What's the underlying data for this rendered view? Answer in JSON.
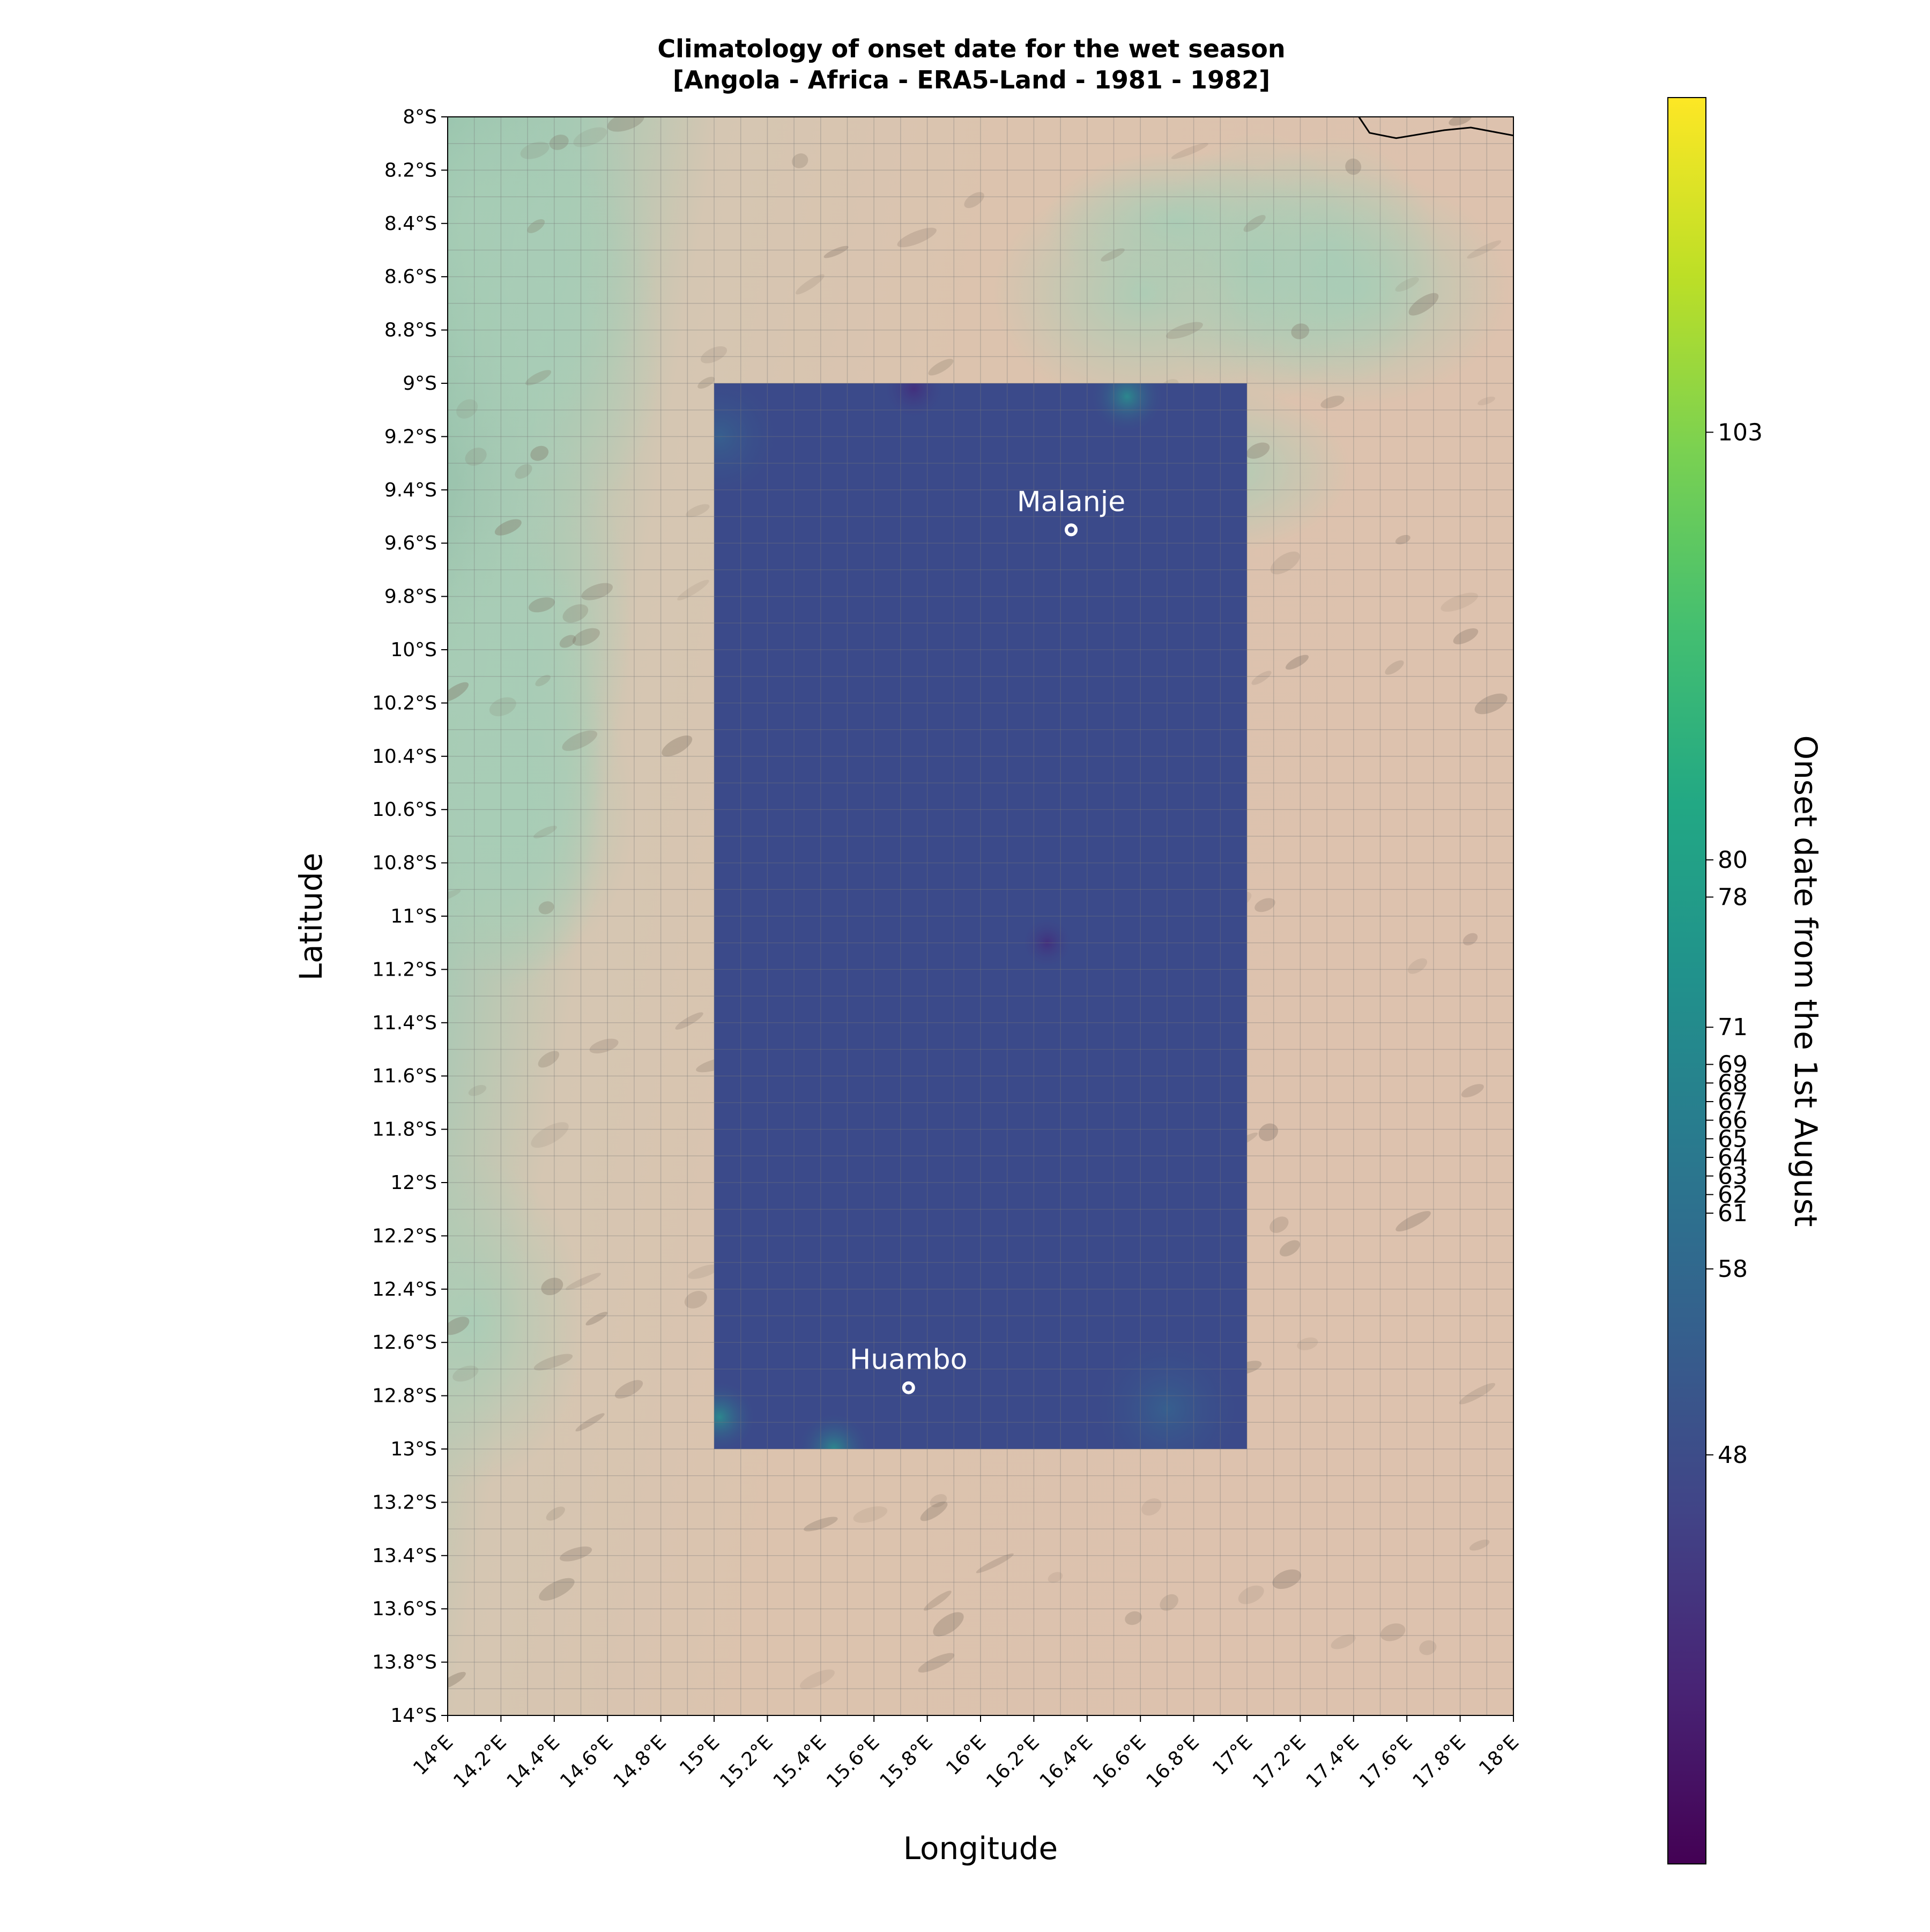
{
  "title_line1": "Climatology of onset date for the wet season",
  "title_line2": "[Angola - Africa - ERA5-Land - 1981 - 1982]",
  "xlabel": "Longitude",
  "ylabel": "Latitude",
  "colorbar_label": "Onset date from the 1st August",
  "colors": {
    "field": "#3b4a8a",
    "field_edge_teal": "#2a8e8e",
    "land_green": "#9cc4ad",
    "land_tan": "#d9c0ac",
    "border_line": "#000000",
    "city_marker": "#ffffff"
  },
  "map": {
    "lon_range": [
      14,
      18
    ],
    "lat_range": [
      -14,
      -8
    ],
    "lon_ticks": [
      "14°E",
      "14.2°E",
      "14.4°E",
      "14.6°E",
      "14.8°E",
      "15°E",
      "15.2°E",
      "15.4°E",
      "15.6°E",
      "15.8°E",
      "16°E",
      "16.2°E",
      "16.4°E",
      "16.6°E",
      "16.8°E",
      "17°E",
      "17.2°E",
      "17.4°E",
      "17.6°E",
      "17.8°E",
      "18°E"
    ],
    "lat_ticks": [
      "8°S",
      "8.2°S",
      "8.4°S",
      "8.6°S",
      "8.8°S",
      "9°S",
      "9.2°S",
      "9.4°S",
      "9.6°S",
      "9.8°S",
      "10°S",
      "10.2°S",
      "10.4°S",
      "10.6°S",
      "10.8°S",
      "11°S",
      "11.2°S",
      "11.4°S",
      "11.6°S",
      "11.8°S",
      "12°S",
      "12.2°S",
      "12.4°S",
      "12.6°S",
      "12.8°S",
      "13°S",
      "13.2°S",
      "13.4°S",
      "13.6°S",
      "13.8°S",
      "14°S"
    ],
    "data_region": {
      "lon_min": 15,
      "lon_max": 17,
      "lat_min": -13,
      "lat_max": -9
    },
    "cities": [
      {
        "name": "Malanje",
        "lon": 16.34,
        "lat": -9.55
      },
      {
        "name": "Huambo",
        "lon": 15.73,
        "lat": -12.77
      }
    ],
    "border": [
      [
        17.42,
        -8.0
      ],
      [
        17.46,
        -8.06
      ],
      [
        17.56,
        -8.08
      ],
      [
        17.74,
        -8.05
      ],
      [
        17.84,
        -8.04
      ],
      [
        18.0,
        -8.07
      ]
    ]
  },
  "colorbar": {
    "cmap": "viridis",
    "ticks": [
      "103",
      "80",
      "78",
      "71",
      "69",
      "68",
      "67",
      "66",
      "65",
      "64",
      "63",
      "62",
      "61",
      "58",
      "48"
    ],
    "tick_values": [
      103,
      80,
      78,
      71,
      69,
      68,
      67,
      66,
      65,
      64,
      63,
      62,
      61,
      58,
      48
    ],
    "range": [
      26,
      121
    ]
  }
}
